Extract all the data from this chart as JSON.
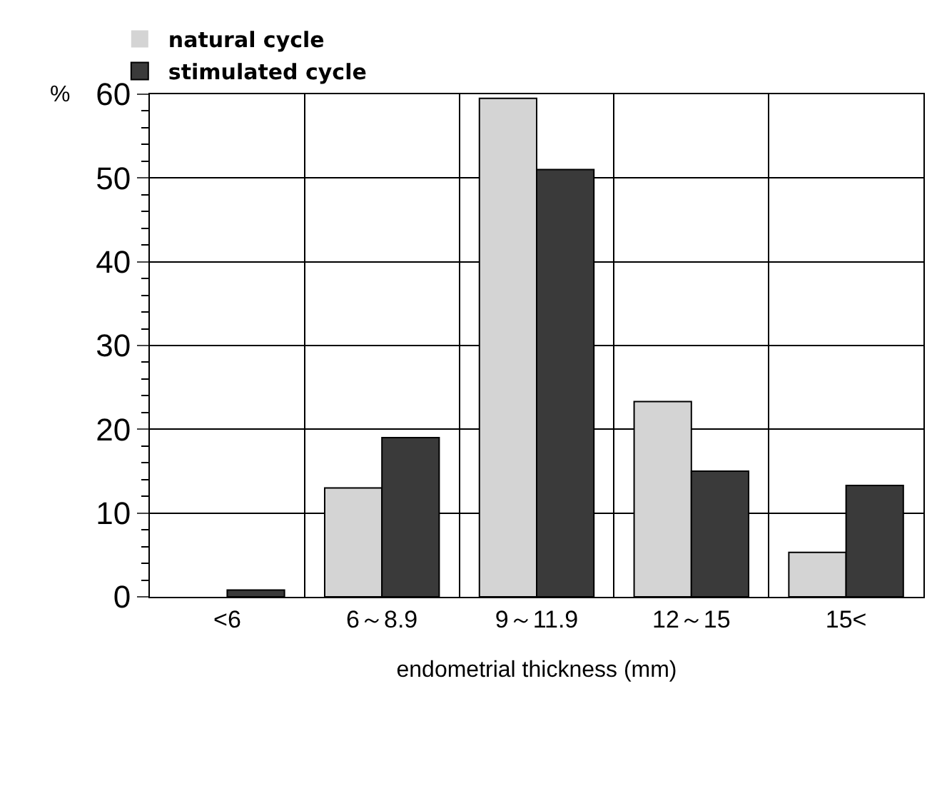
{
  "chart_data": {
    "type": "bar",
    "xlabel": "endometrial thickness (mm)",
    "ylabel": "%",
    "categories": [
      "<6",
      "6～8.9",
      "9～11.9",
      "12～15",
      "15<"
    ],
    "series": [
      {
        "name": "natural cycle",
        "color": "#d4d4d4",
        "values": [
          0,
          13,
          59.5,
          23.3,
          5.3
        ]
      },
      {
        "name": "stimulated cycle",
        "color": "#3a3a3a",
        "values": [
          0.8,
          19,
          51,
          15,
          13.3
        ]
      }
    ],
    "ylim": [
      0,
      60
    ],
    "yticks": [
      0,
      10,
      20,
      30,
      40,
      50,
      60
    ],
    "grid": true,
    "legend": "top left"
  }
}
